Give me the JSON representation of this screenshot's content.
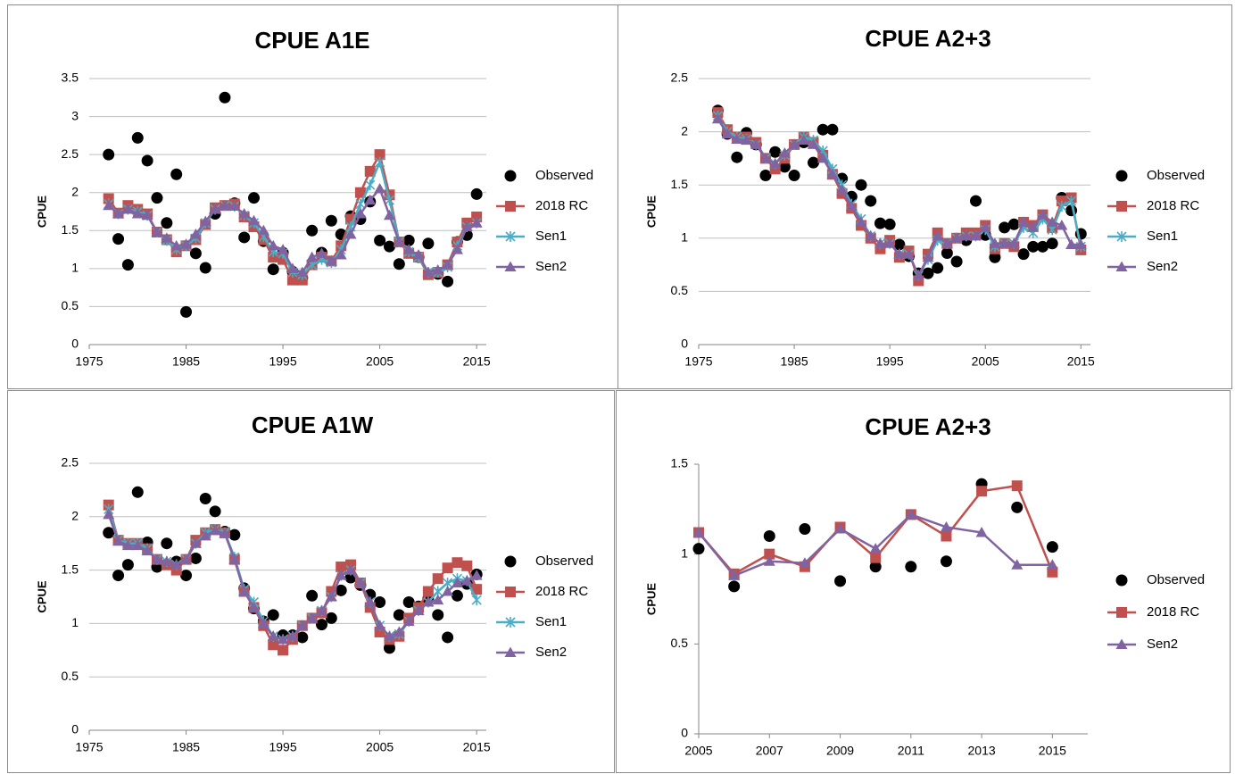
{
  "chart_data": [
    {
      "type": "line",
      "title": "CPUE A1E",
      "ylabel": "CPUE",
      "xlim": [
        1975,
        2016
      ],
      "xticks": [
        1975,
        1985,
        1995,
        2005,
        2015
      ],
      "ylim": [
        0,
        3.5
      ],
      "yticks": [
        0,
        0.5,
        1,
        1.5,
        2,
        2.5,
        3,
        3.5
      ],
      "grid": true,
      "legend": "right",
      "x": [
        1977,
        1978,
        1979,
        1980,
        1981,
        1982,
        1983,
        1984,
        1985,
        1986,
        1987,
        1988,
        1989,
        1990,
        1991,
        1992,
        1993,
        1994,
        1995,
        1996,
        1997,
        1998,
        1999,
        2000,
        2001,
        2002,
        2003,
        2004,
        2005,
        2006,
        2007,
        2008,
        2009,
        2010,
        2011,
        2012,
        2013,
        2014,
        2015
      ],
      "series": [
        {
          "name": "Observed",
          "color": "#000000",
          "marker": "circle",
          "line": false,
          "values": [
            2.5,
            1.39,
            1.05,
            2.72,
            2.42,
            1.93,
            1.6,
            2.24,
            0.43,
            1.2,
            1.01,
            1.72,
            3.25,
            1.86,
            1.41,
            1.93,
            1.36,
            0.99,
            1.21,
            0.96,
            0.88,
            1.5,
            1.21,
            1.63,
            1.45,
            1.69,
            1.65,
            1.88,
            1.37,
            1.29,
            1.06,
            1.37,
            1.15,
            1.33,
            0.93,
            0.83,
            1.35,
            1.44,
            1.98
          ]
        },
        {
          "name": "2018 RC",
          "color": "#c0504d",
          "marker": "square",
          "line": true,
          "values": [
            1.92,
            1.73,
            1.83,
            1.78,
            1.72,
            1.48,
            1.38,
            1.22,
            1.3,
            1.38,
            1.58,
            1.8,
            1.83,
            1.85,
            1.68,
            1.55,
            1.38,
            1.15,
            1.12,
            0.85,
            0.85,
            1.05,
            1.15,
            1.1,
            1.3,
            1.65,
            2.0,
            2.28,
            2.5,
            1.97,
            1.35,
            1.2,
            1.15,
            0.92,
            0.95,
            1.05,
            1.35,
            1.6,
            1.68
          ]
        },
        {
          "name": "Sen1",
          "color": "#4bacc6",
          "marker": "star",
          "line": true,
          "values": [
            1.85,
            1.72,
            1.78,
            1.75,
            1.7,
            1.48,
            1.37,
            1.25,
            1.3,
            1.4,
            1.6,
            1.78,
            1.83,
            1.82,
            1.7,
            1.6,
            1.42,
            1.22,
            1.2,
            0.95,
            0.92,
            1.05,
            1.12,
            1.08,
            1.25,
            1.55,
            1.85,
            2.1,
            2.4,
            1.9,
            1.35,
            1.22,
            1.15,
            0.95,
            0.95,
            1.02,
            1.3,
            1.55,
            1.6
          ]
        },
        {
          "name": "Sen2",
          "color": "#8064a2",
          "marker": "triangle",
          "line": true,
          "values": [
            1.83,
            1.72,
            1.78,
            1.72,
            1.7,
            1.48,
            1.4,
            1.3,
            1.32,
            1.45,
            1.62,
            1.78,
            1.83,
            1.82,
            1.72,
            1.63,
            1.5,
            1.3,
            1.25,
            1.0,
            0.95,
            1.15,
            1.2,
            1.1,
            1.18,
            1.45,
            1.72,
            1.9,
            2.05,
            1.7,
            1.35,
            1.25,
            1.18,
            0.95,
            0.98,
            1.05,
            1.25,
            1.55,
            1.6
          ]
        }
      ]
    },
    {
      "type": "line",
      "title": "CPUE A2+3",
      "ylabel": "CPUE",
      "xlim": [
        1975,
        2016
      ],
      "xticks": [
        1975,
        1985,
        1995,
        2005,
        2015
      ],
      "ylim": [
        0,
        2.5
      ],
      "yticks": [
        0,
        0.5,
        1,
        1.5,
        2,
        2.5
      ],
      "grid": true,
      "legend": "right",
      "x": [
        1977,
        1978,
        1979,
        1980,
        1981,
        1982,
        1983,
        1984,
        1985,
        1986,
        1987,
        1988,
        1989,
        1990,
        1991,
        1992,
        1993,
        1994,
        1995,
        1996,
        1997,
        1998,
        1999,
        2000,
        2001,
        2002,
        2003,
        2004,
        2005,
        2006,
        2007,
        2008,
        2009,
        2010,
        2011,
        2012,
        2013,
        2014,
        2015
      ],
      "series": [
        {
          "name": "Observed",
          "color": "#000000",
          "marker": "circle",
          "line": false,
          "values": [
            2.2,
            1.98,
            1.76,
            1.99,
            1.88,
            1.59,
            1.81,
            1.67,
            1.59,
            1.9,
            1.71,
            2.02,
            2.02,
            1.56,
            1.39,
            1.5,
            1.35,
            1.14,
            1.13,
            0.94,
            0.83,
            0.67,
            0.67,
            0.72,
            0.86,
            0.78,
            0.98,
            1.35,
            1.03,
            0.82,
            1.1,
            1.13,
            0.85,
            0.92,
            0.92,
            0.95,
            1.38,
            1.26,
            1.04
          ]
        },
        {
          "name": "2018 RC",
          "color": "#c0504d",
          "marker": "square",
          "line": true,
          "values": [
            2.18,
            2.02,
            1.95,
            1.95,
            1.9,
            1.75,
            1.65,
            1.75,
            1.88,
            1.95,
            1.9,
            1.78,
            1.6,
            1.42,
            1.28,
            1.12,
            1.0,
            0.9,
            0.98,
            0.82,
            0.88,
            0.6,
            0.85,
            1.05,
            0.95,
            1.0,
            1.05,
            1.05,
            1.12,
            0.9,
            0.95,
            0.92,
            1.15,
            1.12,
            1.22,
            1.1,
            1.35,
            1.38,
            0.89
          ]
        },
        {
          "name": "Sen1",
          "color": "#4bacc6",
          "marker": "star",
          "line": true,
          "values": [
            2.15,
            2.0,
            1.95,
            1.93,
            1.88,
            1.75,
            1.7,
            1.78,
            1.88,
            1.95,
            1.92,
            1.82,
            1.65,
            1.5,
            1.32,
            1.18,
            1.02,
            0.95,
            0.95,
            0.85,
            0.85,
            0.65,
            0.8,
            0.98,
            0.95,
            1.0,
            1.02,
            1.02,
            1.08,
            0.92,
            0.95,
            0.95,
            1.1,
            1.05,
            1.18,
            1.08,
            1.3,
            1.35,
            0.92
          ]
        },
        {
          "name": "Sen2",
          "color": "#8064a2",
          "marker": "triangle",
          "line": true,
          "values": [
            2.12,
            1.98,
            1.93,
            1.92,
            1.88,
            1.75,
            1.7,
            1.8,
            1.88,
            1.92,
            1.88,
            1.75,
            1.6,
            1.45,
            1.3,
            1.15,
            1.02,
            0.95,
            0.95,
            0.85,
            0.85,
            0.65,
            0.82,
            1.02,
            0.95,
            1.0,
            1.02,
            1.02,
            1.1,
            0.95,
            0.95,
            0.95,
            1.15,
            1.1,
            1.22,
            1.15,
            1.12,
            0.94,
            0.94
          ]
        }
      ]
    },
    {
      "type": "line",
      "title": "CPUE A1W",
      "ylabel": "CPUE",
      "xlim": [
        1975,
        2016
      ],
      "xticks": [
        1975,
        1985,
        1995,
        2005,
        2015
      ],
      "ylim": [
        0,
        2.5
      ],
      "yticks": [
        0,
        0.5,
        1,
        1.5,
        2,
        2.5
      ],
      "grid": true,
      "legend": "right",
      "x": [
        1977,
        1978,
        1979,
        1980,
        1981,
        1982,
        1983,
        1984,
        1985,
        1986,
        1987,
        1988,
        1989,
        1990,
        1991,
        1992,
        1993,
        1994,
        1995,
        1996,
        1997,
        1998,
        1999,
        2000,
        2001,
        2002,
        2003,
        2004,
        2005,
        2006,
        2007,
        2008,
        2009,
        2010,
        2011,
        2012,
        2013,
        2014,
        2015
      ],
      "series": [
        {
          "name": "Observed",
          "color": "#000000",
          "marker": "circle",
          "line": false,
          "values": [
            1.85,
            1.45,
            1.55,
            2.23,
            1.76,
            1.53,
            1.75,
            1.58,
            1.45,
            1.61,
            2.17,
            2.05,
            1.86,
            1.83,
            1.33,
            1.14,
            1.02,
            1.08,
            0.89,
            0.89,
            0.87,
            1.26,
            0.99,
            1.05,
            1.31,
            1.43,
            1.36,
            1.27,
            1.2,
            0.77,
            1.08,
            1.2,
            1.16,
            1.23,
            1.08,
            0.87,
            1.26,
            1.37,
            1.46
          ]
        },
        {
          "name": "2018 RC",
          "color": "#c0504d",
          "marker": "square",
          "line": true,
          "values": [
            2.11,
            1.78,
            1.75,
            1.75,
            1.7,
            1.6,
            1.55,
            1.5,
            1.6,
            1.78,
            1.85,
            1.88,
            1.85,
            1.6,
            1.3,
            1.15,
            0.98,
            0.8,
            0.75,
            0.85,
            0.98,
            1.05,
            1.1,
            1.3,
            1.53,
            1.55,
            1.38,
            1.15,
            0.92,
            0.85,
            0.88,
            1.05,
            1.15,
            1.3,
            1.42,
            1.52,
            1.57,
            1.54,
            1.32
          ]
        },
        {
          "name": "Sen1",
          "color": "#4bacc6",
          "marker": "star",
          "line": true,
          "values": [
            2.07,
            1.78,
            1.75,
            1.75,
            1.7,
            1.6,
            1.58,
            1.55,
            1.6,
            1.75,
            1.85,
            1.88,
            1.85,
            1.62,
            1.32,
            1.2,
            1.02,
            0.88,
            0.85,
            0.88,
            0.98,
            1.05,
            1.12,
            1.25,
            1.45,
            1.5,
            1.38,
            1.2,
            0.98,
            0.88,
            0.9,
            1.02,
            1.12,
            1.2,
            1.3,
            1.38,
            1.42,
            1.4,
            1.22
          ]
        },
        {
          "name": "Sen2",
          "color": "#8064a2",
          "marker": "triangle",
          "line": true,
          "values": [
            2.02,
            1.77,
            1.73,
            1.73,
            1.68,
            1.6,
            1.58,
            1.55,
            1.6,
            1.75,
            1.82,
            1.87,
            1.84,
            1.6,
            1.3,
            1.15,
            1.0,
            0.88,
            0.85,
            0.88,
            0.98,
            1.05,
            1.12,
            1.25,
            1.45,
            1.5,
            1.38,
            1.2,
            0.98,
            0.88,
            0.92,
            1.02,
            1.12,
            1.2,
            1.22,
            1.3,
            1.38,
            1.4,
            1.45
          ]
        }
      ]
    },
    {
      "type": "line",
      "title": "CPUE A2+3",
      "ylabel": "CPUE",
      "xlim": [
        2005,
        2016
      ],
      "xticks": [
        2005,
        2007,
        2009,
        2011,
        2013,
        2015
      ],
      "ylim": [
        0,
        1.5
      ],
      "yticks": [
        0,
        0.5,
        1,
        1.5
      ],
      "grid": false,
      "legend": "right",
      "x": [
        2005,
        2006,
        2007,
        2008,
        2009,
        2010,
        2011,
        2012,
        2013,
        2014,
        2015
      ],
      "series": [
        {
          "name": "Observed",
          "color": "#000000",
          "marker": "circle",
          "line": false,
          "values": [
            1.03,
            0.82,
            1.1,
            1.14,
            0.85,
            0.93,
            0.93,
            0.96,
            1.39,
            1.26,
            1.04
          ]
        },
        {
          "name": "2018 RC",
          "color": "#c0504d",
          "marker": "square",
          "line": true,
          "values": [
            1.12,
            0.89,
            1.0,
            0.93,
            1.15,
            0.98,
            1.22,
            1.1,
            1.35,
            1.38,
            0.9
          ]
        },
        {
          "name": "Sen2",
          "color": "#8064a2",
          "marker": "triangle",
          "line": true,
          "values": [
            1.12,
            0.88,
            0.96,
            0.95,
            1.14,
            1.03,
            1.22,
            1.15,
            1.12,
            0.94,
            0.94
          ]
        }
      ]
    }
  ]
}
